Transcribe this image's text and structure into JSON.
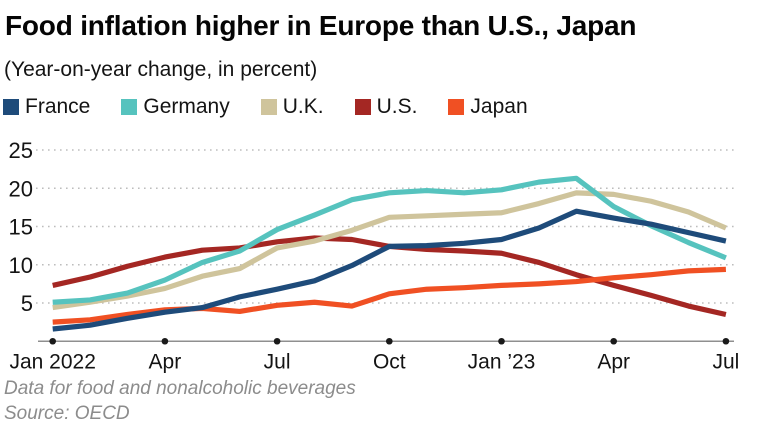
{
  "header": {
    "title": "Food inflation higher in Europe than U.S., Japan",
    "subtitle": "(Year-on-year change, in percent)"
  },
  "footer": {
    "note": "Data for food and nonalcoholic beverages",
    "source": "Source: OECD"
  },
  "colors": {
    "axis_line": "#8f8f8f",
    "tick_dot": "#1a1a1a",
    "gridline": "#bdbdbd",
    "text": "#141414",
    "footnote": "#8c8c8c"
  },
  "chart_data": {
    "type": "line",
    "title": "Food inflation higher in Europe than U.S., Japan",
    "subtitle": "(Year-on-year change, in percent)",
    "xlabel": "",
    "ylabel": "",
    "grid": "dotted-horizontal",
    "legend_position": "top",
    "ylim": [
      0,
      27
    ],
    "y_ticks": [
      5,
      10,
      15,
      20,
      25
    ],
    "categories": [
      "Jan 2022",
      "Feb",
      "Mar",
      "Apr",
      "May",
      "Jun",
      "Jul",
      "Aug",
      "Sep",
      "Oct",
      "Nov",
      "Dec",
      "Jan 2023",
      "Feb",
      "Mar",
      "Apr",
      "May",
      "Jun",
      "Jul"
    ],
    "x_tick_labels": [
      {
        "index": 0,
        "label": "Jan 2022"
      },
      {
        "index": 3,
        "label": "Apr"
      },
      {
        "index": 6,
        "label": "Jul"
      },
      {
        "index": 9,
        "label": "Oct"
      },
      {
        "index": 12,
        "label": "Jan ’23"
      },
      {
        "index": 15,
        "label": "Apr"
      },
      {
        "index": 18,
        "label": "Jul"
      }
    ],
    "series": [
      {
        "name": "France",
        "color": "#1e4b7a",
        "values": [
          1.6,
          2.1,
          3.0,
          3.8,
          4.4,
          5.8,
          6.8,
          7.9,
          9.9,
          12.4,
          12.5,
          12.8,
          13.3,
          14.8,
          17.0,
          16.1,
          15.3,
          14.2,
          13.1
        ]
      },
      {
        "name": "Germany",
        "color": "#56c3be",
        "values": [
          5.1,
          5.4,
          6.3,
          8.0,
          10.3,
          11.8,
          14.6,
          16.5,
          18.5,
          19.4,
          19.7,
          19.4,
          19.8,
          20.8,
          21.3,
          17.6,
          15.1,
          12.9,
          10.9
        ]
      },
      {
        "name": "U.K.",
        "color": "#cfc49c",
        "values": [
          4.4,
          5.1,
          5.9,
          6.9,
          8.5,
          9.5,
          12.2,
          13.1,
          14.5,
          16.2,
          16.4,
          16.6,
          16.8,
          18.0,
          19.4,
          19.2,
          18.3,
          16.9,
          14.8
        ]
      },
      {
        "name": "U.S.",
        "color": "#a42723",
        "values": [
          7.3,
          8.4,
          9.8,
          11.0,
          11.9,
          12.2,
          13.0,
          13.5,
          13.3,
          12.4,
          12.0,
          11.8,
          11.5,
          10.3,
          8.7,
          7.3,
          6.0,
          4.6,
          3.5
        ]
      },
      {
        "name": "Japan",
        "color": "#f05023",
        "values": [
          2.5,
          2.8,
          3.5,
          4.1,
          4.3,
          3.9,
          4.7,
          5.1,
          4.6,
          6.2,
          6.8,
          7.0,
          7.3,
          7.5,
          7.8,
          8.3,
          8.7,
          9.2,
          9.4
        ]
      }
    ],
    "draw_order": [
      "U.S.",
      "U.K.",
      "Germany",
      "Japan",
      "France"
    ]
  }
}
